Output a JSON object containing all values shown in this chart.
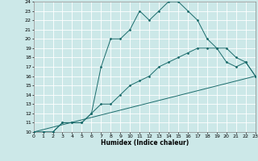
{
  "xlabel": "Humidex (Indice chaleur)",
  "bg_color": "#cce8e8",
  "grid_color": "#ffffff",
  "line_color": "#1a6b6b",
  "xmin": 0,
  "xmax": 23,
  "ymin": 10,
  "ymax": 24,
  "line1_x": [
    0,
    1,
    2,
    3,
    4,
    5,
    6,
    7,
    8,
    9,
    10,
    11,
    12,
    13,
    14,
    15,
    16,
    17,
    18,
    19,
    20,
    21,
    22,
    23
  ],
  "line1_y": [
    10,
    10,
    10,
    11,
    11,
    11,
    12,
    17,
    20,
    20,
    21,
    23,
    22,
    23,
    24,
    24,
    23,
    22,
    20,
    19,
    17.5,
    17,
    17.5,
    16
  ],
  "line2_x": [
    0,
    1,
    2,
    3,
    4,
    5,
    6,
    7,
    8,
    9,
    10,
    11,
    12,
    13,
    14,
    15,
    16,
    17,
    18,
    19,
    20,
    21,
    22,
    23
  ],
  "line2_y": [
    10,
    10,
    10,
    11,
    11,
    11,
    12,
    13,
    13,
    14,
    15,
    15.5,
    16,
    17,
    17.5,
    18,
    18.5,
    19,
    19,
    19,
    19,
    18,
    17.5,
    16
  ],
  "line3_x": [
    0,
    23
  ],
  "line3_y": [
    10,
    16
  ]
}
